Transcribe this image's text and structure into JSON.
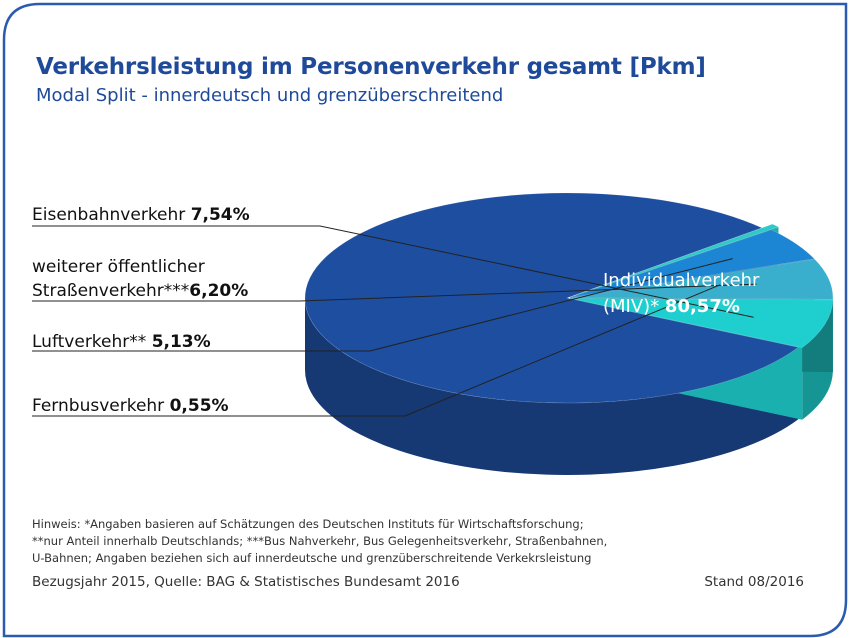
{
  "header": {
    "title": "Verkehrsleistung im Personenverkehr gesamt [Pkm]",
    "subtitle": "Modal Split - innerdeutsch und grenzüberschreitend"
  },
  "chart_data": {
    "type": "pie",
    "slices": [
      {
        "label": "Individualverkehr (MIV)*",
        "value": 80.57,
        "value_text": "80,57%",
        "color": "#1e4ea0"
      },
      {
        "label": "Fernbusverkehr",
        "value": 0.55,
        "value_text": "0,55%",
        "color": "#2ec9c9"
      },
      {
        "label": "Luftverkehr**",
        "value": 5.13,
        "value_text": "5,13%",
        "color": "#1c86d4"
      },
      {
        "label": "weiterer öffentlicher Straßenverkehr***",
        "value": 6.2,
        "value_text": "6,20%",
        "color": "#3aaecd"
      },
      {
        "label": "Eisenbahnverkehr",
        "value": 7.54,
        "value_text": "7,54%",
        "color": "#1fcfcf"
      }
    ]
  },
  "labels": {
    "eisenbahn_name": "Eisenbahnverkehr ",
    "eisenbahn_value": "7,54%",
    "strassen_line1": "weiterer öffentlicher",
    "strassen_line2": "Straßenverkehr***",
    "strassen_value": "6,20%",
    "luft_name": "Luftverkehr** ",
    "luft_value": "5,13%",
    "fernbus_name": "Fernbusverkehr ",
    "fernbus_value": "0,55%",
    "miv_line1": "Individualverkehr",
    "miv_line2": "(MIV)* ",
    "miv_value": "80,57%"
  },
  "footer": {
    "note1": "Hinweis: *Angaben basieren auf Schätzungen des Deutschen Instituts für Wirtschaftsforschung;",
    "note2": "**nur Anteil innerhalb Deutschlands; ***Bus Nahverkehr, Bus Gelegenheitsverkehr, Straßenbahnen,",
    "note3": "U-Bahnen; Angaben beziehen sich auf  innerdeutsche und grenzüberschreitende Verkekrsleistung",
    "source": "Bezugsjahr 2015, Quelle: BAG & Statistisches Bundesamt 2016",
    "stand": "Stand 08/2016"
  },
  "colors": {
    "frame": "#2a5bb0",
    "title": "#1f4a9a"
  }
}
